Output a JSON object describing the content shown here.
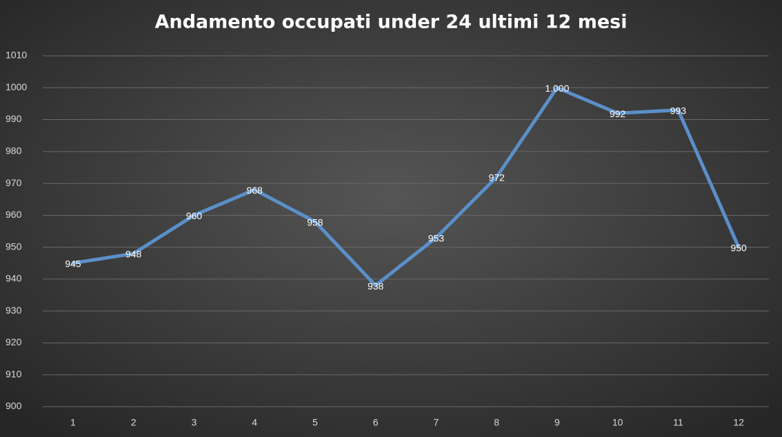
{
  "chart_data": {
    "type": "line",
    "title": "Andamento occupati under 24 ultimi 12 mesi",
    "categories": [
      "1",
      "2",
      "3",
      "4",
      "5",
      "6",
      "7",
      "8",
      "9",
      "10",
      "11",
      "12"
    ],
    "values": [
      945,
      948,
      960,
      968,
      958,
      938,
      953,
      972,
      1000,
      992,
      993,
      950
    ],
    "value_labels": [
      "945",
      "948",
      "960",
      "968",
      "958",
      "938",
      "953",
      "972",
      "1.000",
      "992",
      "993",
      "950"
    ],
    "color": "#5b8fc9",
    "ylim": [
      900,
      1010
    ],
    "yticks": [
      900,
      910,
      920,
      930,
      940,
      950,
      960,
      970,
      980,
      990,
      1000,
      1010
    ],
    "grid": true
  }
}
